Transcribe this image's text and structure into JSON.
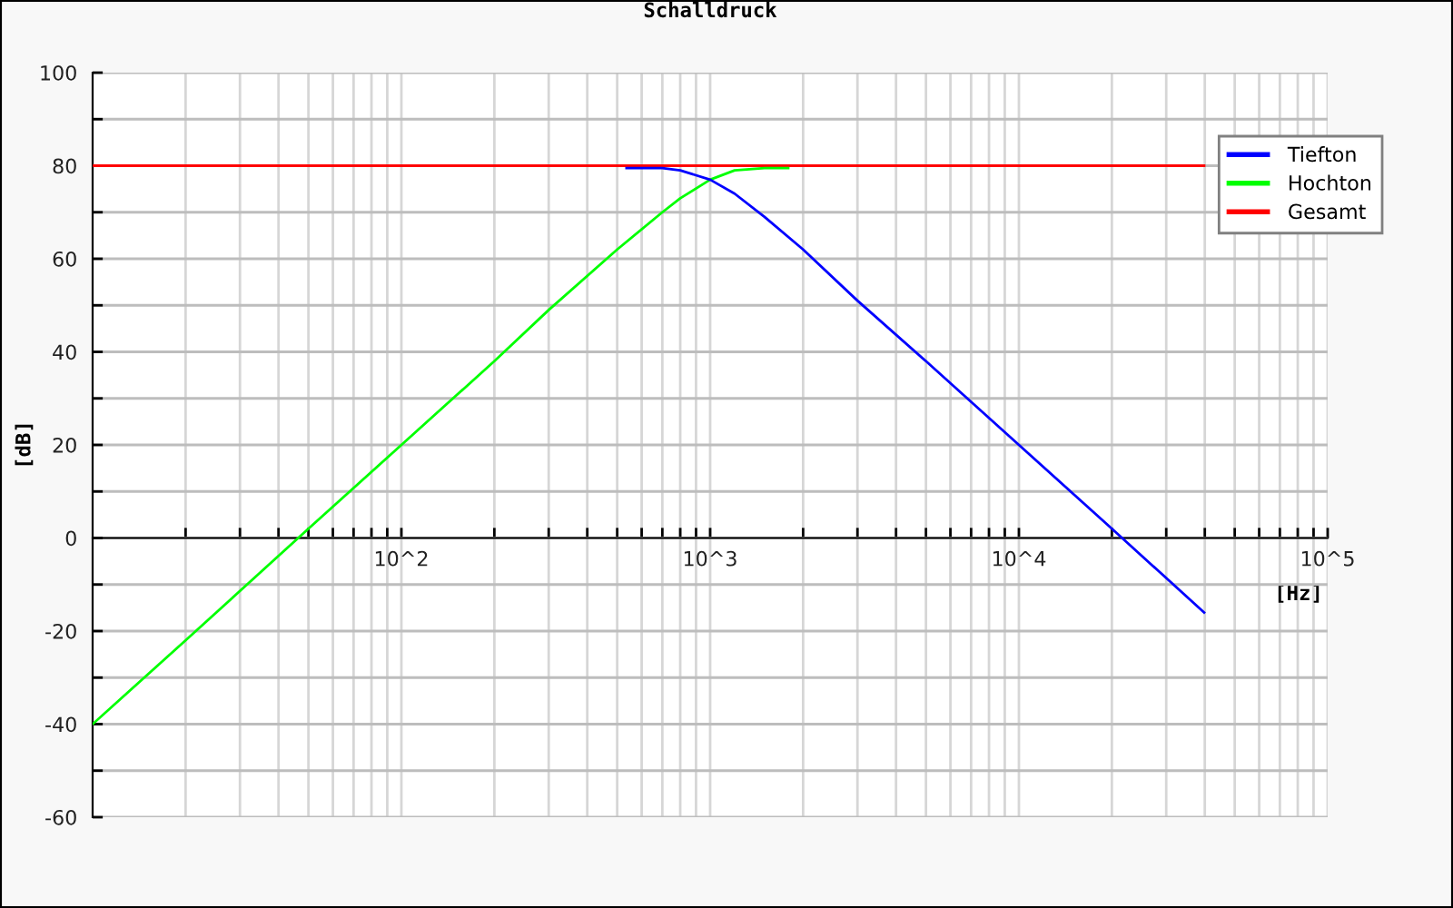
{
  "chart_data": {
    "type": "line",
    "title": "Schalldruck",
    "xlabel": "[Hz]",
    "ylabel": "[dB]",
    "log": "x",
    "xlim": [
      10,
      100000
    ],
    "ylim": [
      -60,
      100
    ],
    "xticks": [
      {
        "value": 20,
        "label": null
      },
      {
        "value": 30,
        "label": null
      },
      {
        "value": 40,
        "label": null
      },
      {
        "value": 50,
        "label": null
      },
      {
        "value": 60,
        "label": null
      },
      {
        "value": 70,
        "label": null
      },
      {
        "value": 80,
        "label": null
      },
      {
        "value": 90,
        "label": null
      },
      {
        "value": 100,
        "label": "10^2"
      },
      {
        "value": 200,
        "label": null
      },
      {
        "value": 300,
        "label": null
      },
      {
        "value": 400,
        "label": null
      },
      {
        "value": 500,
        "label": null
      },
      {
        "value": 600,
        "label": null
      },
      {
        "value": 700,
        "label": null
      },
      {
        "value": 800,
        "label": null
      },
      {
        "value": 900,
        "label": null
      },
      {
        "value": 1000,
        "label": "10^3"
      },
      {
        "value": 2000,
        "label": null
      },
      {
        "value": 3000,
        "label": null
      },
      {
        "value": 4000,
        "label": null
      },
      {
        "value": 5000,
        "label": null
      },
      {
        "value": 6000,
        "label": null
      },
      {
        "value": 7000,
        "label": null
      },
      {
        "value": 8000,
        "label": null
      },
      {
        "value": 9000,
        "label": null
      },
      {
        "value": 10000,
        "label": "10^4"
      },
      {
        "value": 20000,
        "label": null
      },
      {
        "value": 30000,
        "label": null
      },
      {
        "value": 40000,
        "label": null
      },
      {
        "value": 50000,
        "label": null
      },
      {
        "value": 60000,
        "label": null
      },
      {
        "value": 70000,
        "label": null
      },
      {
        "value": 80000,
        "label": null
      },
      {
        "value": 90000,
        "label": null
      },
      {
        "value": 100000,
        "label": "10^5"
      }
    ],
    "yticks": [
      -60,
      {
        "value": -50,
        "label": null
      },
      -40,
      {
        "value": -30,
        "label": null
      },
      -20,
      {
        "value": -10,
        "label": null
      },
      0,
      {
        "value": 10,
        "label": null
      },
      20,
      {
        "value": 30,
        "label": null
      },
      40,
      {
        "value": 50,
        "label": null
      },
      60,
      {
        "value": 70,
        "label": null
      },
      80,
      {
        "value": 90,
        "label": null
      },
      100
    ],
    "grid": true,
    "legend": "top right",
    "series": [
      {
        "name": "Tiefton",
        "color": "#0000ff",
        "x": [
          536,
          700,
          800,
          1000,
          1200,
          1500,
          2000,
          3000,
          5000,
          10000,
          20000,
          39800
        ],
        "values": [
          79.5,
          79.5,
          79,
          77,
          74,
          69,
          62,
          51,
          38,
          20,
          2,
          -16
        ]
      },
      {
        "name": "Hochton",
        "color": "#00ff00",
        "x": [
          10,
          20,
          50,
          100,
          200,
          300,
          500,
          700,
          800,
          1000,
          1200,
          1500,
          1790
        ],
        "values": [
          -40,
          -22,
          2,
          20,
          38,
          49,
          62,
          70,
          73,
          77,
          79,
          79.5,
          79.5
        ]
      },
      {
        "name": "Gesamt",
        "color": "#ff0000",
        "x": [
          10,
          39800
        ],
        "values": [
          80,
          80
        ]
      }
    ]
  }
}
